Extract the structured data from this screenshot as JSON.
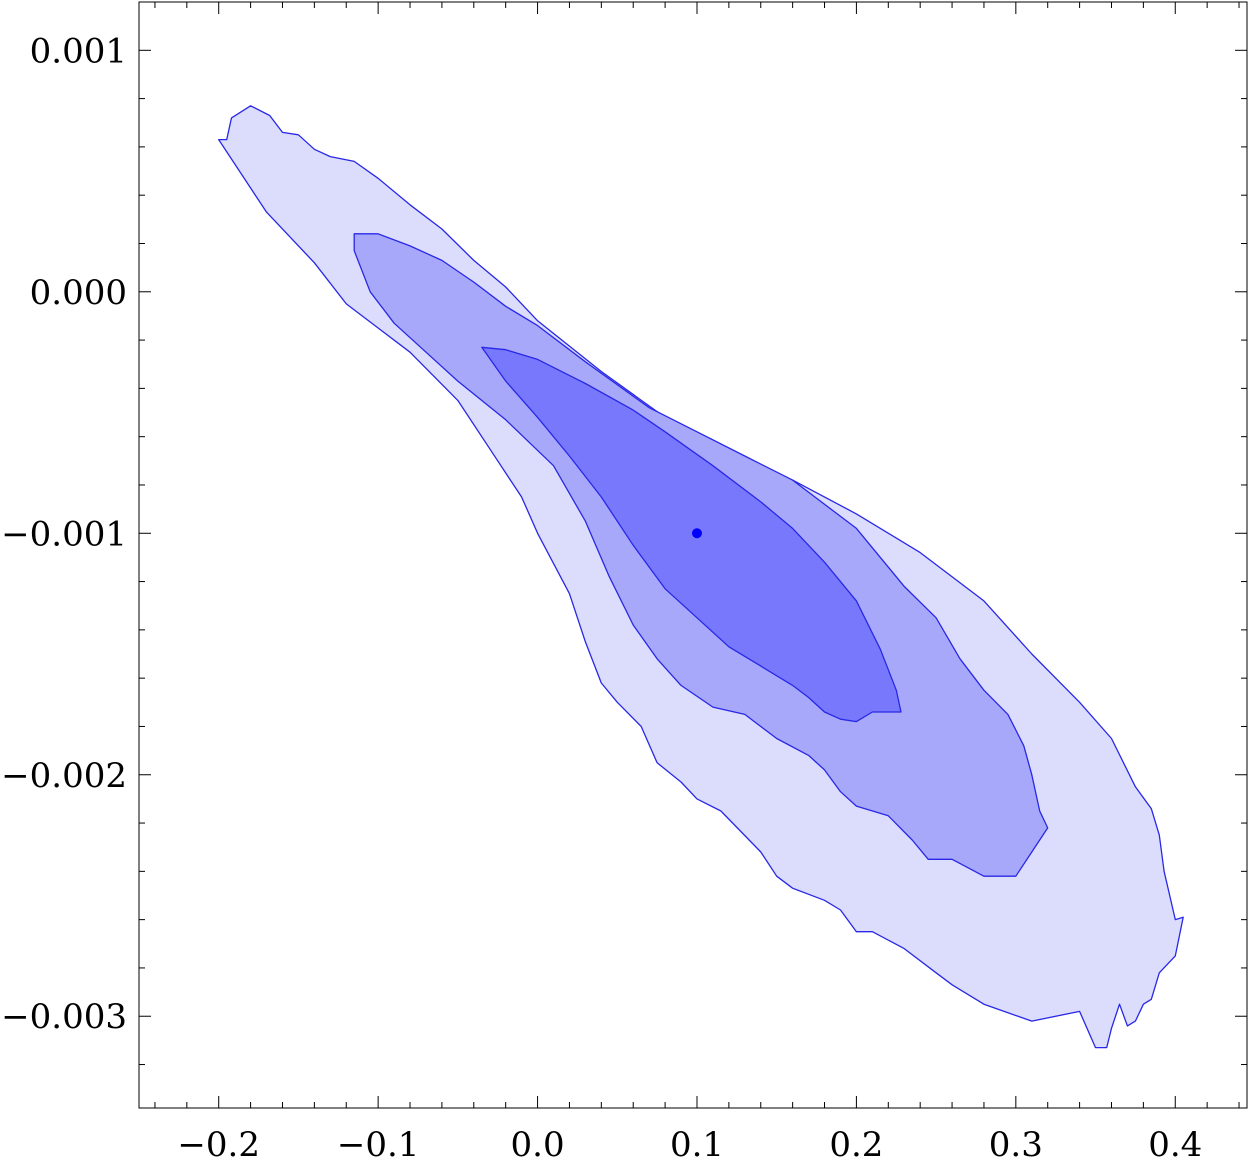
{
  "chart_data": {
    "type": "contour",
    "title": "",
    "xlabel": "",
    "ylabel": "",
    "xlim": [
      -0.25,
      0.445
    ],
    "ylim": [
      -0.00338,
      0.0012
    ],
    "grid": false,
    "x_ticks": [
      -0.2,
      -0.1,
      0.0,
      0.1,
      0.2,
      0.3,
      0.4
    ],
    "x_tick_labels": [
      "−0.2",
      "−0.1",
      "0.0",
      "0.1",
      "0.2",
      "0.3",
      "0.4"
    ],
    "y_ticks": [
      0.001,
      0.0,
      -0.001,
      -0.002,
      -0.003
    ],
    "y_tick_labels": [
      "0.001",
      "0.000",
      "−0.001",
      "−0.002",
      "−0.003"
    ],
    "series": [
      {
        "level": "outer",
        "color": "#dcdcfc",
        "points": [
          [
            -0.2,
            0.00063
          ],
          [
            -0.195,
            0.00063
          ],
          [
            -0.192,
            0.00072
          ],
          [
            -0.18,
            0.00077
          ],
          [
            -0.168,
            0.00073
          ],
          [
            -0.16,
            0.00066
          ],
          [
            -0.15,
            0.00065
          ],
          [
            -0.14,
            0.00059
          ],
          [
            -0.13,
            0.00056
          ],
          [
            -0.115,
            0.00054
          ],
          [
            -0.1,
            0.00047
          ],
          [
            -0.08,
            0.00036
          ],
          [
            -0.06,
            0.00026
          ],
          [
            -0.04,
            0.00013
          ],
          [
            -0.02,
            2e-05
          ],
          [
            0.0,
            -0.00012
          ],
          [
            0.04,
            -0.00033
          ],
          [
            0.08,
            -0.00052
          ],
          [
            0.12,
            -0.00068
          ],
          [
            0.16,
            -0.00078
          ],
          [
            0.2,
            -0.00092
          ],
          [
            0.24,
            -0.00108
          ],
          [
            0.28,
            -0.00128
          ],
          [
            0.31,
            -0.0015
          ],
          [
            0.34,
            -0.0017
          ],
          [
            0.36,
            -0.00185
          ],
          [
            0.375,
            -0.00205
          ],
          [
            0.385,
            -0.00214
          ],
          [
            0.39,
            -0.00225
          ],
          [
            0.393,
            -0.0024
          ],
          [
            0.4,
            -0.0026
          ],
          [
            0.405,
            -0.00259
          ],
          [
            0.4,
            -0.00275
          ],
          [
            0.39,
            -0.00282
          ],
          [
            0.385,
            -0.00293
          ],
          [
            0.38,
            -0.00295
          ],
          [
            0.375,
            -0.00302
          ],
          [
            0.37,
            -0.00304
          ],
          [
            0.365,
            -0.00295
          ],
          [
            0.36,
            -0.00305
          ],
          [
            0.357,
            -0.00313
          ],
          [
            0.35,
            -0.00313
          ],
          [
            0.34,
            -0.00298
          ],
          [
            0.31,
            -0.00302
          ],
          [
            0.28,
            -0.00295
          ],
          [
            0.26,
            -0.00287
          ],
          [
            0.25,
            -0.00282
          ],
          [
            0.23,
            -0.00272
          ],
          [
            0.21,
            -0.00265
          ],
          [
            0.2,
            -0.00265
          ],
          [
            0.19,
            -0.00256
          ],
          [
            0.18,
            -0.00252
          ],
          [
            0.16,
            -0.00247
          ],
          [
            0.15,
            -0.00242
          ],
          [
            0.14,
            -0.00232
          ],
          [
            0.115,
            -0.00215
          ],
          [
            0.1,
            -0.0021
          ],
          [
            0.09,
            -0.00203
          ],
          [
            0.075,
            -0.00195
          ],
          [
            0.065,
            -0.0018
          ],
          [
            0.05,
            -0.0017
          ],
          [
            0.04,
            -0.00162
          ],
          [
            0.03,
            -0.00145
          ],
          [
            0.02,
            -0.00125
          ],
          [
            0.0,
            -0.001
          ],
          [
            -0.01,
            -0.00085
          ],
          [
            -0.03,
            -0.00065
          ],
          [
            -0.05,
            -0.00045
          ],
          [
            -0.08,
            -0.00025
          ],
          [
            -0.1,
            -0.00015
          ],
          [
            -0.12,
            -5e-05
          ],
          [
            -0.14,
            0.00012
          ],
          [
            -0.17,
            0.00033
          ],
          [
            -0.2,
            0.00063
          ]
        ]
      },
      {
        "level": "middle",
        "color": "#a8a8fa",
        "points": [
          [
            -0.115,
            0.00024
          ],
          [
            -0.1,
            0.00024
          ],
          [
            -0.08,
            0.00019
          ],
          [
            -0.06,
            0.00013
          ],
          [
            -0.04,
            4e-05
          ],
          [
            -0.02,
            -6e-05
          ],
          [
            0.0,
            -0.00014
          ],
          [
            0.03,
            -0.00029
          ],
          [
            0.07,
            -0.00048
          ],
          [
            0.1,
            -0.00058
          ],
          [
            0.13,
            -0.00068
          ],
          [
            0.16,
            -0.00078
          ],
          [
            0.2,
            -0.00098
          ],
          [
            0.23,
            -0.00122
          ],
          [
            0.25,
            -0.00135
          ],
          [
            0.265,
            -0.00152
          ],
          [
            0.28,
            -0.00165
          ],
          [
            0.295,
            -0.00175
          ],
          [
            0.305,
            -0.00188
          ],
          [
            0.31,
            -0.002
          ],
          [
            0.315,
            -0.00215
          ],
          [
            0.32,
            -0.00222
          ],
          [
            0.31,
            -0.00232
          ],
          [
            0.3,
            -0.00242
          ],
          [
            0.28,
            -0.00242
          ],
          [
            0.26,
            -0.00235
          ],
          [
            0.245,
            -0.00235
          ],
          [
            0.235,
            -0.00227
          ],
          [
            0.22,
            -0.00217
          ],
          [
            0.2,
            -0.00213
          ],
          [
            0.19,
            -0.00207
          ],
          [
            0.18,
            -0.00198
          ],
          [
            0.17,
            -0.00192
          ],
          [
            0.15,
            -0.00185
          ],
          [
            0.13,
            -0.00175
          ],
          [
            0.11,
            -0.00172
          ],
          [
            0.09,
            -0.00163
          ],
          [
            0.075,
            -0.00152
          ],
          [
            0.06,
            -0.00138
          ],
          [
            0.045,
            -0.00118
          ],
          [
            0.03,
            -0.00095
          ],
          [
            0.01,
            -0.00072
          ],
          [
            -0.02,
            -0.00053
          ],
          [
            -0.05,
            -0.00037
          ],
          [
            -0.07,
            -0.00025
          ],
          [
            -0.09,
            -0.00013
          ],
          [
            -0.105,
            0.0
          ],
          [
            -0.115,
            0.00017
          ],
          [
            -0.115,
            0.00024
          ]
        ]
      },
      {
        "level": "inner",
        "color": "#7878fc",
        "points": [
          [
            -0.035,
            -0.00023
          ],
          [
            -0.02,
            -0.00024
          ],
          [
            0.0,
            -0.00028
          ],
          [
            0.03,
            -0.00038
          ],
          [
            0.06,
            -0.00049
          ],
          [
            0.08,
            -0.00058
          ],
          [
            0.11,
            -0.00072
          ],
          [
            0.14,
            -0.00087
          ],
          [
            0.16,
            -0.00098
          ],
          [
            0.18,
            -0.00112
          ],
          [
            0.2,
            -0.00128
          ],
          [
            0.215,
            -0.00148
          ],
          [
            0.225,
            -0.00165
          ],
          [
            0.228,
            -0.00174
          ],
          [
            0.21,
            -0.00174
          ],
          [
            0.2,
            -0.00178
          ],
          [
            0.19,
            -0.00177
          ],
          [
            0.18,
            -0.00174
          ],
          [
            0.17,
            -0.00168
          ],
          [
            0.16,
            -0.00163
          ],
          [
            0.14,
            -0.00155
          ],
          [
            0.12,
            -0.00147
          ],
          [
            0.1,
            -0.00135
          ],
          [
            0.08,
            -0.00123
          ],
          [
            0.06,
            -0.00105
          ],
          [
            0.04,
            -0.00085
          ],
          [
            0.02,
            -0.00068
          ],
          [
            0.0,
            -0.00052
          ],
          [
            -0.02,
            -0.00037
          ],
          [
            -0.035,
            -0.00023
          ]
        ]
      }
    ],
    "points": [
      {
        "x": 0.1,
        "y": -0.001,
        "color": "#0000ff"
      }
    ]
  }
}
